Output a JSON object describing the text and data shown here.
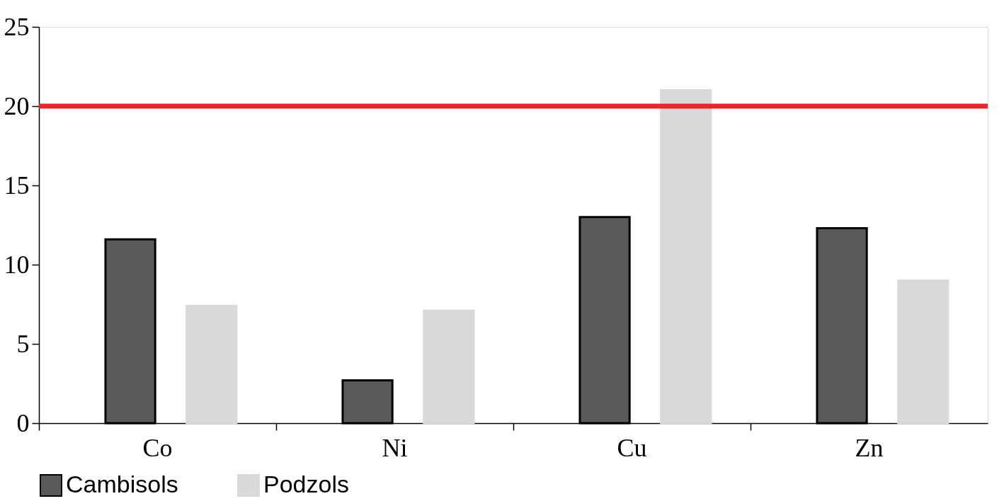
{
  "chart_data": {
    "type": "bar",
    "categories": [
      "Co",
      "Ni",
      "Cu",
      "Zn"
    ],
    "series": [
      {
        "name": "Cambisols",
        "color": "#5a5a5a",
        "values": [
          11.6,
          2.7,
          13.0,
          12.3
        ]
      },
      {
        "name": "Podzols",
        "color": "#d9d9d9",
        "values": [
          7.4,
          7.1,
          21.0,
          9.0
        ]
      }
    ],
    "ylim": [
      0,
      25
    ],
    "yticks": [
      0,
      5,
      10,
      15,
      20,
      25
    ],
    "ref_lines": [
      {
        "axis": "y",
        "value": 20,
        "color": "#e8262b"
      }
    ],
    "grid": false,
    "legend": "bottom"
  }
}
